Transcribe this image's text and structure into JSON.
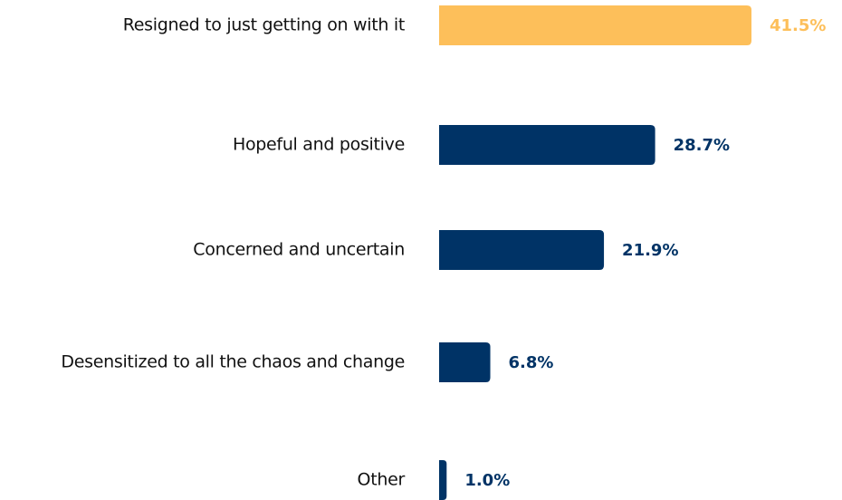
{
  "chart_data": {
    "type": "hbar",
    "categories": [
      "Resigned to just getting on with it",
      "Hopeful and positive",
      "Concerned and uncertain",
      "Desensitized to all the chaos and change",
      "Other"
    ],
    "values": [
      41.5,
      28.7,
      21.9,
      6.8,
      1.0
    ],
    "value_labels": [
      "41.5%",
      "28.7%",
      "21.9%",
      "6.8%",
      "1.0%"
    ],
    "colors": [
      "#fdbf5a",
      "#003366",
      "#003366",
      "#003366",
      "#003366"
    ]
  }
}
